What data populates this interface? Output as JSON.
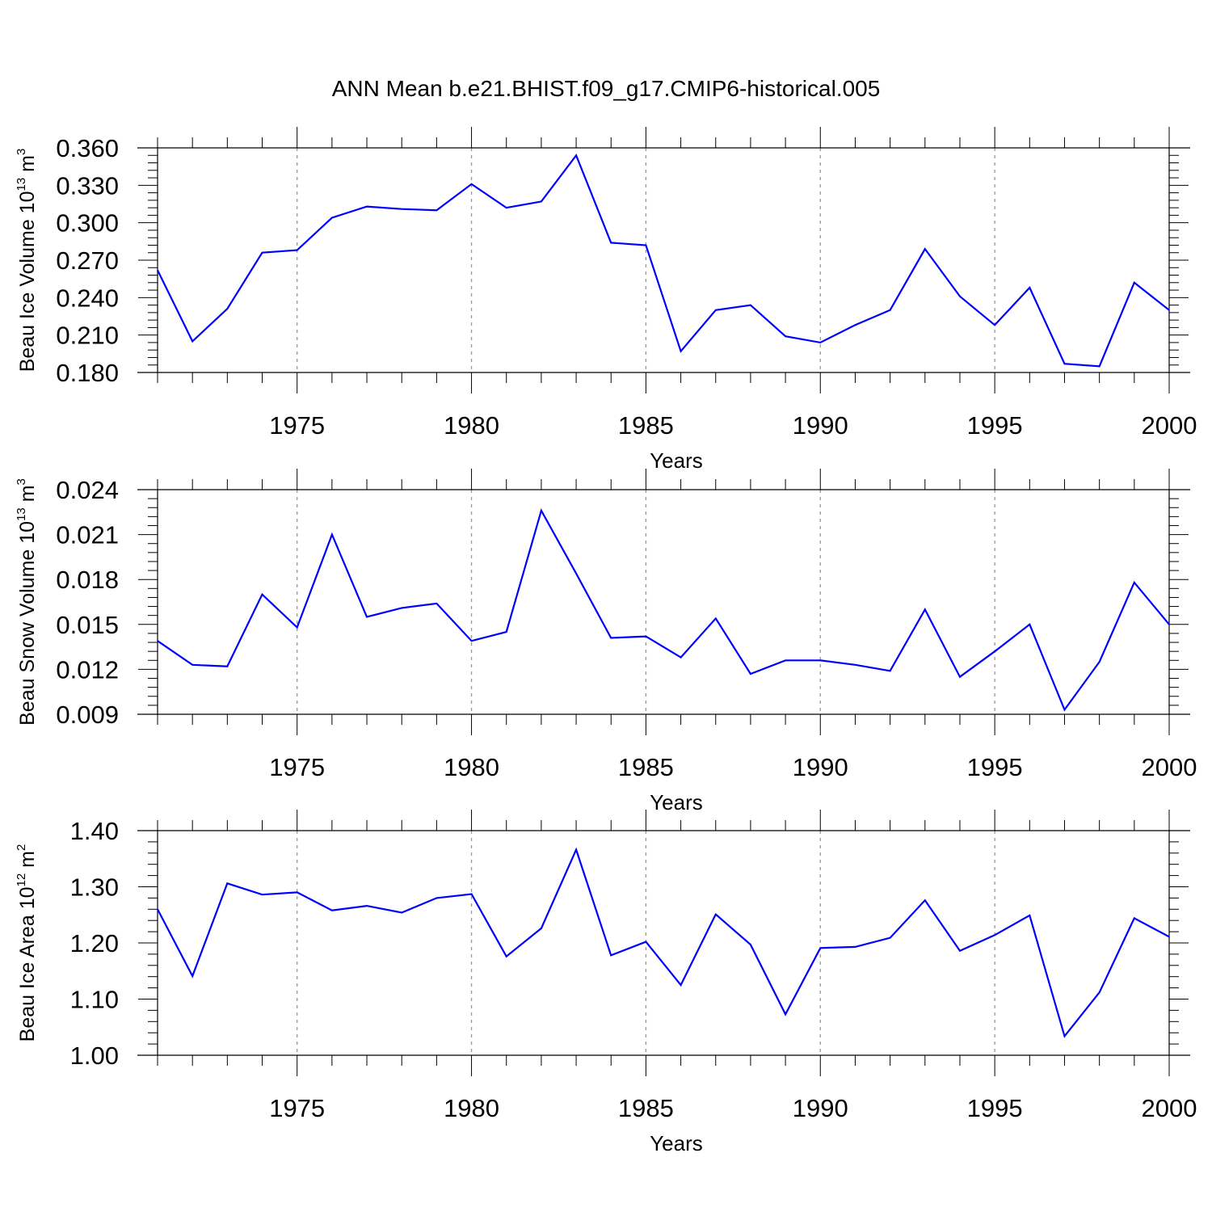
{
  "figure": {
    "title": "ANN Mean b.e21.BHIST.f09_g17.CMIP6-historical.005"
  },
  "chart_data": [
    {
      "type": "line",
      "ylabel": {
        "text": "Beau Ice Volume 10",
        "sup": "13",
        "unit": " m",
        "unit_sup": "3"
      },
      "xlabel": "Years",
      "xlim": [
        1971,
        2000
      ],
      "x_ticks": [
        "1975",
        "1980",
        "1985",
        "1990",
        "1995",
        "2000"
      ],
      "x_tick_values": [
        1975,
        1980,
        1985,
        1990,
        1995,
        2000
      ],
      "ylim": [
        0.18,
        0.36
      ],
      "y_ticks": [
        "0.180",
        "0.210",
        "0.240",
        "0.270",
        "0.300",
        "0.330",
        "0.360"
      ],
      "y_tick_values": [
        0.18,
        0.21,
        0.24,
        0.27,
        0.3,
        0.33,
        0.36
      ],
      "grid": "dashed vertical at major x ticks",
      "series": [
        {
          "color": "#0000ff",
          "x": [
            1971,
            1972,
            1973,
            1974,
            1975,
            1976,
            1977,
            1978,
            1979,
            1980,
            1981,
            1982,
            1983,
            1984,
            1985,
            1986,
            1987,
            1988,
            1989,
            1990,
            1991,
            1992,
            1993,
            1994,
            1995,
            1996,
            1997,
            1998,
            1999,
            2000
          ],
          "values": [
            0.262,
            0.205,
            0.231,
            0.276,
            0.278,
            0.304,
            0.313,
            0.311,
            0.31,
            0.331,
            0.312,
            0.317,
            0.354,
            0.284,
            0.282,
            0.197,
            0.23,
            0.234,
            0.209,
            0.204,
            0.218,
            0.23,
            0.279,
            0.241,
            0.218,
            0.248,
            0.187,
            0.185,
            0.252,
            0.23
          ]
        }
      ]
    },
    {
      "type": "line",
      "ylabel": {
        "text": "Beau Snow Volume 10",
        "sup": "13",
        "unit": " m",
        "unit_sup": "3"
      },
      "xlabel": "Years",
      "xlim": [
        1971,
        2000
      ],
      "x_ticks": [
        "1975",
        "1980",
        "1985",
        "1990",
        "1995",
        "2000"
      ],
      "x_tick_values": [
        1975,
        1980,
        1985,
        1990,
        1995,
        2000
      ],
      "ylim": [
        0.009,
        0.024
      ],
      "y_ticks": [
        "0.009",
        "0.012",
        "0.015",
        "0.018",
        "0.021",
        "0.024"
      ],
      "y_tick_values": [
        0.009,
        0.012,
        0.015,
        0.018,
        0.021,
        0.024
      ],
      "grid": "dashed vertical at major x ticks",
      "series": [
        {
          "color": "#0000ff",
          "x": [
            1971,
            1972,
            1973,
            1974,
            1975,
            1976,
            1977,
            1978,
            1979,
            1980,
            1981,
            1982,
            1983,
            1984,
            1985,
            1986,
            1987,
            1988,
            1989,
            1990,
            1991,
            1992,
            1993,
            1994,
            1995,
            1996,
            1997,
            1998,
            1999,
            2000
          ],
          "values": [
            0.0139,
            0.0123,
            0.0122,
            0.017,
            0.0148,
            0.021,
            0.0155,
            0.0161,
            0.0164,
            0.0139,
            0.0145,
            0.0226,
            0.0184,
            0.0141,
            0.0142,
            0.0128,
            0.0154,
            0.0117,
            0.0126,
            0.0126,
            0.0123,
            0.0119,
            0.016,
            0.0115,
            0.0132,
            0.015,
            0.0093,
            0.0125,
            0.0178,
            0.015
          ]
        }
      ]
    },
    {
      "type": "line",
      "ylabel": {
        "text": "Beau Ice Area 10",
        "sup": "12",
        "unit": " m",
        "unit_sup": "2"
      },
      "xlabel": "Years",
      "xlim": [
        1971,
        2000
      ],
      "x_ticks": [
        "1975",
        "1980",
        "1985",
        "1990",
        "1995",
        "2000"
      ],
      "x_tick_values": [
        1975,
        1980,
        1985,
        1990,
        1995,
        2000
      ],
      "ylim": [
        1.0,
        1.4
      ],
      "y_ticks": [
        "1.00",
        "1.10",
        "1.20",
        "1.30",
        "1.40"
      ],
      "y_tick_values": [
        1.0,
        1.1,
        1.2,
        1.3,
        1.4
      ],
      "grid": "dashed vertical at major x ticks",
      "series": [
        {
          "color": "#0000ff",
          "x": [
            1971,
            1972,
            1973,
            1974,
            1975,
            1976,
            1977,
            1978,
            1979,
            1980,
            1981,
            1982,
            1983,
            1984,
            1985,
            1986,
            1987,
            1988,
            1989,
            1990,
            1991,
            1992,
            1993,
            1994,
            1995,
            1996,
            1997,
            1998,
            1999,
            2000
          ],
          "values": [
            1.26,
            1.141,
            1.306,
            1.286,
            1.29,
            1.258,
            1.266,
            1.254,
            1.28,
            1.287,
            1.176,
            1.226,
            1.366,
            1.178,
            1.202,
            1.125,
            1.251,
            1.197,
            1.073,
            1.191,
            1.193,
            1.209,
            1.276,
            1.186,
            1.214,
            1.249,
            1.034,
            1.112,
            1.244,
            1.211
          ]
        }
      ]
    }
  ]
}
